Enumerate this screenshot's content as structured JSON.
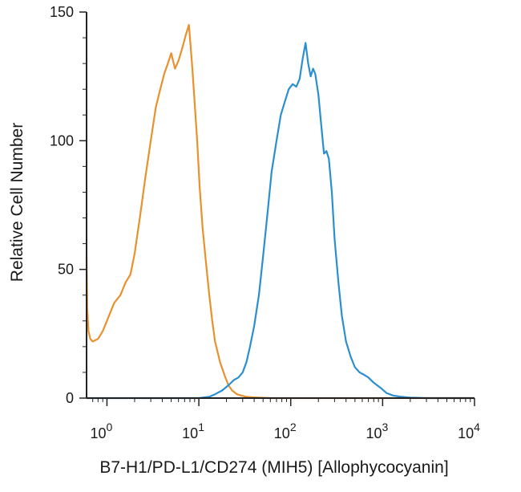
{
  "chart_data": {
    "type": "line",
    "xlabel": "B7-H1/PD-L1/CD274 (MIH5) [Allophycocyanin]",
    "ylabel": "Relative Cell Number",
    "x_scale": "log",
    "xlim": [
      0.6,
      10000
    ],
    "ylim": [
      0,
      150
    ],
    "y_ticks": [
      {
        "value": 0,
        "label": "0"
      },
      {
        "value": 50,
        "label": "50"
      },
      {
        "value": 100,
        "label": "100"
      },
      {
        "value": 150,
        "label": "150"
      }
    ],
    "x_ticks": [
      {
        "value": 1,
        "base": "10",
        "exp": "0"
      },
      {
        "value": 10,
        "base": "10",
        "exp": "1"
      },
      {
        "value": 100,
        "base": "10",
        "exp": "2"
      },
      {
        "value": 1000,
        "base": "10",
        "exp": "3"
      },
      {
        "value": 10000,
        "base": "10",
        "exp": "4"
      }
    ],
    "grid": false,
    "legend": "none",
    "series": [
      {
        "color": "#e8912d",
        "x": [
          0.6,
          0.61,
          0.63,
          0.66,
          0.7,
          0.8,
          0.9,
          1.0,
          1.2,
          1.4,
          1.6,
          1.8,
          2.0,
          2.3,
          2.6,
          3.0,
          3.4,
          3.8,
          4.2,
          4.6,
          5.0,
          5.5,
          6.0,
          6.6,
          7.2,
          7.8,
          8.5,
          9.0,
          9.6,
          10.2,
          11,
          12,
          13,
          14,
          15,
          17,
          19,
          21,
          23,
          26,
          29,
          33,
          38,
          45,
          60,
          100,
          1000,
          10000
        ],
        "y": [
          55,
          35,
          26,
          23,
          22,
          23,
          26,
          30,
          37,
          40,
          45,
          48,
          56,
          71,
          85,
          100,
          113,
          120,
          126,
          130,
          134,
          128,
          131,
          136,
          141,
          145,
          128,
          115,
          100,
          82,
          66,
          52,
          40,
          30,
          22,
          14,
          9,
          5,
          3,
          1.5,
          1,
          0.5,
          0.3,
          0.2,
          0,
          0,
          0,
          0
        ]
      },
      {
        "color": "#2b8fcf",
        "x": [
          0.6,
          10,
          13,
          15,
          18,
          21,
          24,
          27,
          30,
          33,
          36,
          40,
          45,
          50,
          56,
          62,
          70,
          78,
          86,
          95,
          105,
          115,
          125,
          135,
          145,
          155,
          165,
          175,
          185,
          200,
          215,
          230,
          245,
          260,
          280,
          300,
          330,
          360,
          400,
          450,
          500,
          560,
          630,
          700,
          800,
          950,
          1100,
          1300,
          1600,
          2000,
          3000,
          10000
        ],
        "y": [
          0,
          0,
          0.5,
          1.5,
          3,
          5,
          7,
          8,
          10,
          14,
          20,
          28,
          40,
          55,
          72,
          88,
          100,
          110,
          115,
          120,
          122,
          121,
          124,
          132,
          138,
          130,
          125,
          128,
          126,
          118,
          106,
          95,
          96,
          93,
          80,
          62,
          45,
          32,
          22,
          16,
          12,
          10,
          9,
          8,
          6,
          4,
          2,
          1,
          0.5,
          0.2,
          0,
          0
        ]
      }
    ]
  }
}
